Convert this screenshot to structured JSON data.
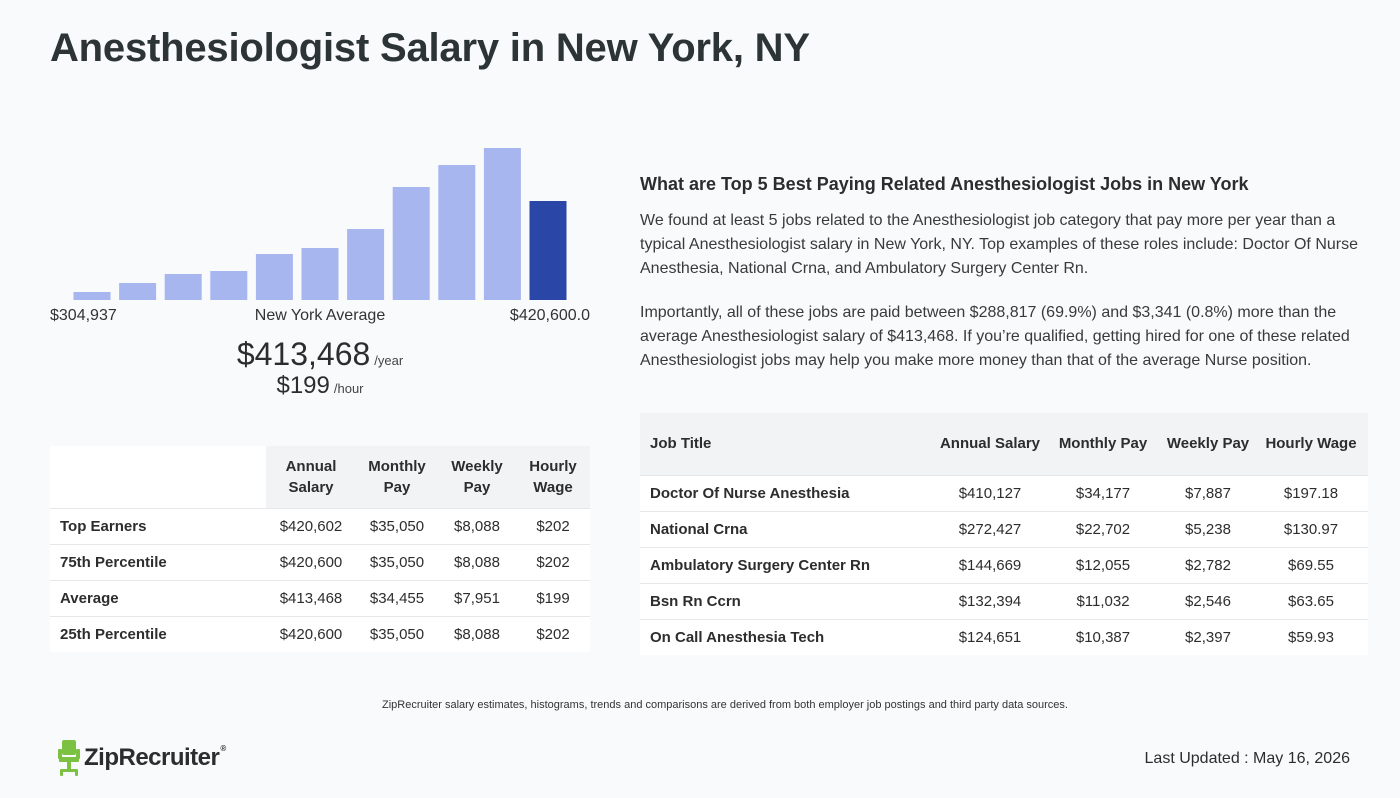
{
  "title": "Anesthesiologist Salary in New York, NY",
  "histogram": {
    "min_label": "$304,937",
    "center_label": "New York Average",
    "max_label": "$420,600.0",
    "bar_color": "#a8b6f0",
    "highlight_color": "#2a46a6"
  },
  "chart_data": {
    "type": "bar",
    "categories": [
      "1",
      "2",
      "3",
      "4",
      "5",
      "6",
      "7",
      "8",
      "9",
      "10",
      "11"
    ],
    "values": [
      8,
      17,
      26,
      29,
      46,
      52,
      71,
      113,
      135,
      152,
      99
    ],
    "highlight_index": 10,
    "ylim": [
      0,
      160
    ]
  },
  "headline": {
    "annual": "$413,468",
    "annual_unit": "/year",
    "hourly": "$199",
    "hourly_unit": "/hour"
  },
  "percentile_table": {
    "headers": [
      "Annual Salary",
      "Monthly Pay",
      "Weekly Pay",
      "Hourly Wage"
    ],
    "rows": [
      {
        "label": "Top Earners",
        "annual": "$420,602",
        "monthly": "$35,050",
        "weekly": "$8,088",
        "hourly": "$202"
      },
      {
        "label": "75th Percentile",
        "annual": "$420,600",
        "monthly": "$35,050",
        "weekly": "$8,088",
        "hourly": "$202"
      },
      {
        "label": "Average",
        "annual": "$413,468",
        "monthly": "$34,455",
        "weekly": "$7,951",
        "hourly": "$199"
      },
      {
        "label": "25th Percentile",
        "annual": "$420,600",
        "monthly": "$35,050",
        "weekly": "$8,088",
        "hourly": "$202"
      }
    ]
  },
  "related": {
    "heading": "What are Top 5 Best Paying Related Anesthesiologist Jobs in New York",
    "paragraph1": "We found at least 5 jobs related to the Anesthesiologist job category that pay more per year than a typical Anesthesiologist salary in New York, NY. Top examples of these roles include: Doctor Of Nurse Anesthesia, National Crna, and Ambulatory Surgery Center Rn.",
    "paragraph2": "Importantly, all of these jobs are paid between $288,817 (69.9%) and $3,341 (0.8%) more than the average Anesthesiologist salary of $413,468. If you’re qualified, getting hired for one of these related Anesthesiologist jobs may help you make more money than that of the average Nurse position."
  },
  "jobs_table": {
    "headers": [
      "Job Title",
      "Annual Salary",
      "Monthly Pay",
      "Weekly Pay",
      "Hourly Wage"
    ],
    "rows": [
      {
        "title": "Doctor Of Nurse Anesthesia",
        "annual": "$410,127",
        "monthly": "$34,177",
        "weekly": "$7,887",
        "hourly": "$197.18"
      },
      {
        "title": "National Crna",
        "annual": "$272,427",
        "monthly": "$22,702",
        "weekly": "$5,238",
        "hourly": "$130.97"
      },
      {
        "title": "Ambulatory Surgery Center Rn",
        "annual": "$144,669",
        "monthly": "$12,055",
        "weekly": "$2,782",
        "hourly": "$69.55"
      },
      {
        "title": "Bsn Rn Ccrn",
        "annual": "$132,394",
        "monthly": "$11,032",
        "weekly": "$2,546",
        "hourly": "$63.65"
      },
      {
        "title": "On Call Anesthesia Tech",
        "annual": "$124,651",
        "monthly": "$10,387",
        "weekly": "$2,397",
        "hourly": "$59.93"
      }
    ]
  },
  "footer": {
    "disclaimer": "ZipRecruiter salary estimates, histograms, trends and comparisons are derived from both employer job postings and third party data sources.",
    "brand": "ZipRecruiter",
    "brand_mark": "®",
    "logo_color": "#7cc242",
    "updated": "Last Updated : May 16, 2026"
  }
}
